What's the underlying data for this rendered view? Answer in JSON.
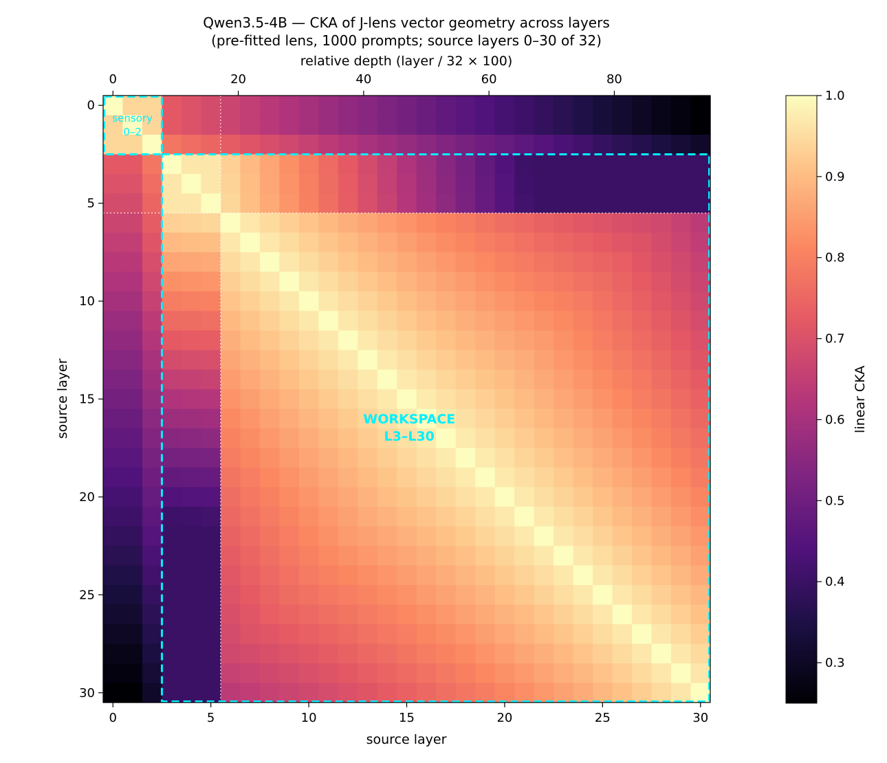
{
  "chart_data": {
    "type": "heatmap",
    "title_line1": "Qwen3.5-4B — CKA of J-lens vector geometry across layers",
    "title_line2": "(pre-fitted lens, 1000 prompts; source layers 0–30 of 32)",
    "xlabel": "source layer",
    "ylabel": "source layer",
    "top_xlabel": "relative depth  (layer / 32 × 100)",
    "colorbar_label": "linear CKA",
    "colormap": "magma",
    "vmin": 0.25,
    "vmax": 1.0,
    "n_layers": 31,
    "x_ticks": [
      "0",
      "5",
      "10",
      "15",
      "20",
      "25",
      "30"
    ],
    "y_ticks": [
      "0",
      "5",
      "10",
      "15",
      "20",
      "25",
      "30"
    ],
    "top_ticks": [
      "0",
      "20",
      "40",
      "60",
      "80"
    ],
    "colorbar_ticks": [
      "0.3",
      "0.4",
      "0.5",
      "0.6",
      "0.7",
      "0.8",
      "0.9",
      "1.0"
    ],
    "region_sensory": {
      "label_line1": "sensory",
      "label_line2": "0–2",
      "start_layer": 0,
      "end_layer": 2
    },
    "region_workspace": {
      "label_line1": "WORKSPACE",
      "label_line2": "L3–L30",
      "start_layer": 3,
      "end_layer": 30
    },
    "dotted_boundary_layer": 5.5,
    "box_color": "#00f0ff"
  }
}
